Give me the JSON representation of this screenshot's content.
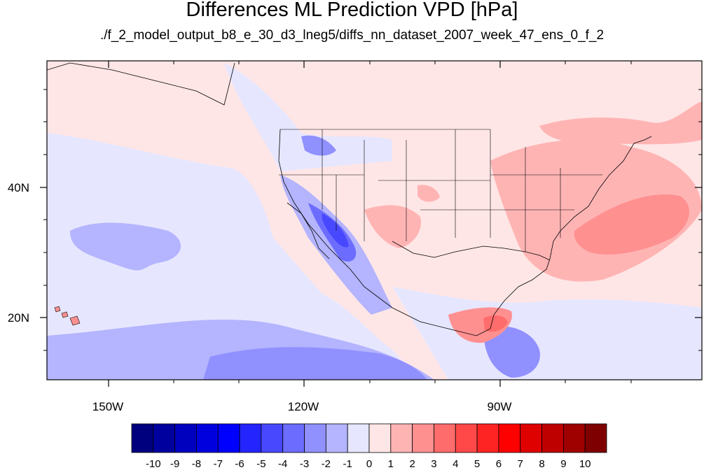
{
  "title": "Differences ML Prediction VPD [hPa]",
  "subtitle": "./f_2_model_output_b8_e_30_d3_lneg5/diffs_nn_dataset_2007_week_47_ens_0_f_2",
  "axes": {
    "lat_labels": [
      "40N",
      "20N"
    ],
    "lon_labels": [
      "150W",
      "120W",
      "90W"
    ]
  },
  "colorbar": {
    "labels": [
      "-10",
      "-9",
      "-8",
      "-7",
      "-6",
      "-5",
      "-4",
      "-3",
      "-2",
      "-1",
      "0",
      "1",
      "2",
      "3",
      "4",
      "5",
      "6",
      "7",
      "8",
      "9",
      "10"
    ],
    "colors": [
      "#00007f",
      "#00009f",
      "#0000bf",
      "#0000df",
      "#0000ff",
      "#2424ff",
      "#4848ff",
      "#6c6cff",
      "#9090ff",
      "#b4b4ff",
      "#e6e6ff",
      "#ffe6e6",
      "#ffb4b4",
      "#ff9090",
      "#ff6c6c",
      "#ff4848",
      "#ff2424",
      "#ff0000",
      "#df0000",
      "#bf0000",
      "#9f0000",
      "#7f0000"
    ]
  },
  "chart_data": {
    "type": "heatmap",
    "title": "Differences ML Prediction VPD [hPa]",
    "subtitle": "./f_2_model_output_b8_e_30_d3_lneg5/diffs_nn_dataset_2007_week_47_ens_0_f_2",
    "projection": "cylindrical-equidistant",
    "lon_range": [
      -159.3,
      -61
    ],
    "lat_range": [
      10.7,
      58.4
    ],
    "color_levels": [
      -10,
      -9,
      -8,
      -7,
      -6,
      -5,
      -4,
      -3,
      -2,
      -1,
      0,
      1,
      2,
      3,
      4,
      5,
      6,
      7,
      8,
      9,
      10
    ],
    "background_value_range": [
      -1,
      1
    ]
  }
}
